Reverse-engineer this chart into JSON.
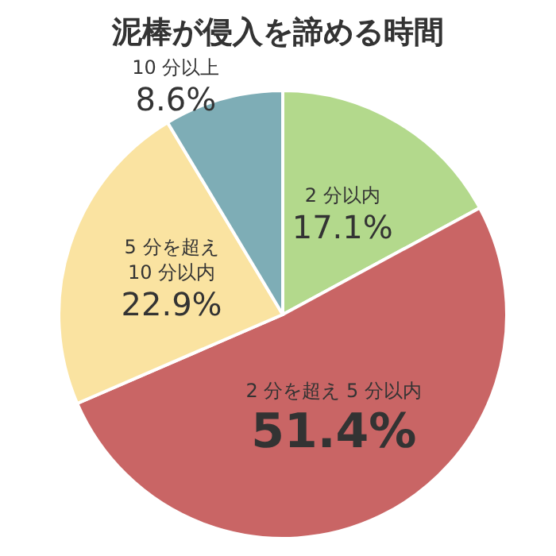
{
  "chart_data": {
    "type": "pie",
    "title": "泥棒が侵入を諦める時間",
    "categories": [
      "2 分以内",
      "2 分を超え 5 分以内",
      "5 分を超え\n10 分以内",
      "10 分以上"
    ],
    "values": [
      17.1,
      51.4,
      22.9,
      8.6
    ],
    "value_labels": [
      "17.1%",
      "51.4%",
      "22.9%",
      "8.6%"
    ],
    "colors": [
      "#b3d98c",
      "#c96565",
      "#fae3a1",
      "#7eadb6"
    ],
    "legend": false
  }
}
